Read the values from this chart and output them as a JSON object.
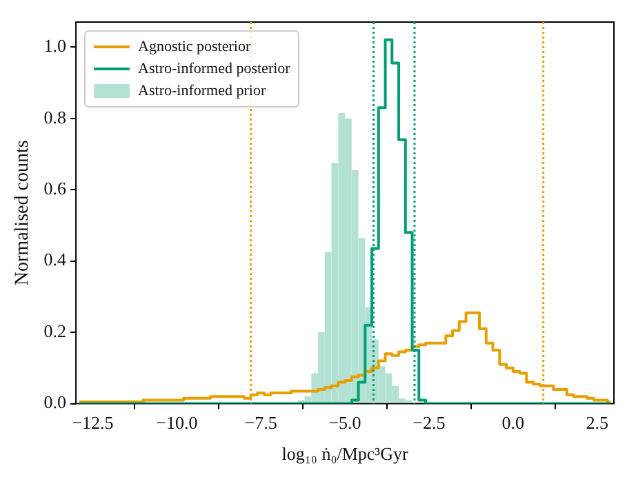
{
  "chart_data": {
    "type": "histogram",
    "xlabel": "log₁₀ ṅ₀/Mpc³Gyr",
    "ylabel": "Normalised counts",
    "bins": [
      -13,
      -12.8,
      -12.6,
      -12.4,
      -12.2,
      -12,
      -11.8,
      -11.6,
      -11.4,
      -11.2,
      -11,
      -10.8,
      -10.6,
      -10.4,
      -10.2,
      -10,
      -9.8,
      -9.6,
      -9.4,
      -9.2,
      -9,
      -8.8,
      -8.6,
      -8.4,
      -8.2,
      -8,
      -7.8,
      -7.6,
      -7.4,
      -7.2,
      -7,
      -6.8,
      -6.6,
      -6.4,
      -6.2,
      -6,
      -5.8,
      -5.6,
      -5.4,
      -5.2,
      -5,
      -4.8,
      -4.6,
      -4.4,
      -4.2,
      -4,
      -3.8,
      -3.6,
      -3.4,
      -3.2,
      -3,
      -2.8,
      -2.6,
      -2.4,
      -2.2,
      -2,
      -1.8,
      -1.6,
      -1.4,
      -1.2,
      -1,
      -0.8,
      -0.6,
      -0.4,
      -0.2,
      0,
      0.2,
      0.4,
      0.6,
      0.8,
      1,
      1.2,
      1.4,
      1.6,
      1.8,
      2,
      2.2,
      2.4,
      2.6,
      2.8,
      3
    ],
    "series": [
      {
        "name": "Agnostic posterior",
        "type": "step",
        "color": "#e69f00",
        "x": [
          -12.9,
          -12.7,
          -12.5,
          -12.3,
          -12.1,
          -11.9,
          -11.7,
          -11.5,
          -11.3,
          -11.1,
          -10.9,
          -10.7,
          -10.5,
          -10.3,
          -10.1,
          -9.9,
          -9.7,
          -9.5,
          -9.3,
          -9.1,
          -8.9,
          -8.7,
          -8.5,
          -8.3,
          -8.1,
          -7.9,
          -7.7,
          -7.5,
          -7.3,
          -7.1,
          -6.9,
          -6.7,
          -6.5,
          -6.3,
          -6.1,
          -5.9,
          -5.7,
          -5.5,
          -5.3,
          -5.1,
          -4.9,
          -4.7,
          -4.5,
          -4.3,
          -4.1,
          -3.9,
          -3.7,
          -3.5,
          -3.3,
          -3.1,
          -2.9,
          -2.7,
          -2.5,
          -2.3,
          -2.1,
          -1.9,
          -1.7,
          -1.5,
          -1.3,
          -1.1,
          -0.9,
          -0.7,
          -0.5,
          -0.3,
          -0.1,
          0.1,
          0.3,
          0.5,
          0.7,
          0.9,
          1.1,
          1.3,
          1.5,
          1.7,
          1.9,
          2.1,
          2.3,
          2.5,
          2.7,
          2.9
        ],
        "values": [
          0.005,
          0.005,
          0.005,
          0.005,
          0.005,
          0.005,
          0.005,
          0.005,
          0.005,
          0.005,
          0.01,
          0.01,
          0.01,
          0.01,
          0.01,
          0.01,
          0.015,
          0.015,
          0.015,
          0.015,
          0.02,
          0.02,
          0.02,
          0.02,
          0.02,
          0.015,
          0.025,
          0.03,
          0.025,
          0.03,
          0.03,
          0.03,
          0.035,
          0.035,
          0.035,
          0.035,
          0.04,
          0.045,
          0.05,
          0.06,
          0.065,
          0.075,
          0.08,
          0.09,
          0.1,
          0.12,
          0.14,
          0.135,
          0.145,
          0.15,
          0.16,
          0.165,
          0.17,
          0.17,
          0.17,
          0.19,
          0.205,
          0.23,
          0.255,
          0.255,
          0.21,
          0.17,
          0.15,
          0.11,
          0.1,
          0.09,
          0.085,
          0.06,
          0.055,
          0.05,
          0.05,
          0.04,
          0.04,
          0.025,
          0.02,
          0.02,
          0.015,
          0.01,
          0.01,
          0.005
        ]
      },
      {
        "name": "Astro-informed posterior",
        "type": "step",
        "color": "#009e73",
        "x": [
          -12.9,
          -12.7,
          -12.5,
          -12.3,
          -12.1,
          -11.9,
          -11.7,
          -11.5,
          -11.3,
          -11.1,
          -10.9,
          -10.7,
          -10.5,
          -10.3,
          -10.1,
          -9.9,
          -9.7,
          -9.5,
          -9.3,
          -9.1,
          -8.9,
          -8.7,
          -8.5,
          -8.3,
          -8.1,
          -7.9,
          -7.7,
          -7.5,
          -7.3,
          -7.1,
          -6.9,
          -6.7,
          -6.5,
          -6.3,
          -6.1,
          -5.9,
          -5.7,
          -5.5,
          -5.3,
          -5.1,
          -4.9,
          -4.7,
          -4.5,
          -4.3,
          -4.1,
          -3.9,
          -3.7,
          -3.5,
          -3.3,
          -3.1,
          -2.9,
          -2.7,
          -2.5,
          -2.3,
          -2.1,
          -1.9,
          -1.7,
          -1.5,
          -1.3,
          -1.1,
          -0.9,
          -0.7,
          -0.5,
          -0.3,
          -0.1,
          0.1,
          0.3,
          0.5,
          0.7,
          0.9,
          1.1,
          1.3,
          1.5,
          1.7,
          1.9,
          2.1,
          2.3,
          2.5,
          2.7,
          2.9
        ],
        "values": [
          0,
          0,
          0,
          0,
          0,
          0,
          0,
          0,
          0,
          0,
          0,
          0,
          0,
          0,
          0,
          0,
          0,
          0,
          0,
          0,
          0,
          0,
          0,
          0,
          0,
          0,
          0,
          0,
          0,
          0,
          0,
          0,
          0,
          0,
          0,
          0,
          0,
          0,
          0,
          0,
          0,
          0.01,
          0.06,
          0.22,
          0.435,
          0.83,
          1.02,
          0.955,
          0.74,
          0.48,
          0.15,
          0.01,
          0,
          0,
          0,
          0,
          0,
          0,
          0,
          0,
          0,
          0,
          0,
          0,
          0,
          0,
          0,
          0,
          0,
          0,
          0,
          0,
          0,
          0,
          0,
          0,
          0,
          0,
          0,
          0
        ]
      },
      {
        "name": "Astro-informed prior",
        "color": "#b3e2d5",
        "values": [
          0,
          0,
          0,
          0,
          0,
          0,
          0,
          0,
          0,
          0,
          0,
          0,
          0,
          0,
          0,
          0,
          0,
          0,
          0,
          0,
          0,
          0,
          0,
          0,
          0,
          0,
          0,
          0,
          0,
          0,
          0,
          0,
          0,
          0.01,
          0.02,
          0.085,
          0.2,
          0.425,
          0.675,
          0.815,
          0.8,
          0.655,
          0.465,
          0.27,
          0.18,
          0.105,
          0.085,
          0.05,
          0.015,
          0.01,
          null,
          null,
          0,
          0,
          0,
          0,
          0,
          0,
          0,
          0,
          0,
          0,
          0,
          0,
          0,
          0,
          0,
          0,
          0,
          0,
          0,
          0,
          0,
          0,
          0,
          0,
          0,
          0,
          0,
          0
        ]
      }
    ],
    "xlim": [
      -13,
      3
    ],
    "xticks": [
      {
        "value": -12.5,
        "label": "−12.5"
      },
      {
        "value": -10,
        "label": "−10.0"
      },
      {
        "value": -7.5,
        "label": "−7.5"
      },
      {
        "value": -5,
        "label": "−5.0"
      },
      {
        "value": -2.5,
        "label": "−2.5"
      },
      {
        "value": 0,
        "label": "0.0"
      },
      {
        "value": 2.5,
        "label": "2.5"
      }
    ],
    "ylim": [
      0,
      1.07
    ],
    "yticks": [
      {
        "value": 0,
        "label": "0.0"
      },
      {
        "value": 0.2,
        "label": "0.2"
      },
      {
        "value": 0.4,
        "label": "0.4"
      },
      {
        "value": 0.6,
        "label": "0.6"
      },
      {
        "value": 0.8,
        "label": "0.8"
      },
      {
        "value": 1,
        "label": "1.0"
      }
    ],
    "ref_lines": [
      {
        "axis": "x",
        "value": -7.8,
        "color": "#e69f00",
        "line_style": "dotted"
      },
      {
        "axis": "x",
        "value": 0.9,
        "color": "#e69f00",
        "line_style": "dotted"
      },
      {
        "axis": "x",
        "value": -4.15,
        "color": "#009e73",
        "line_style": "dotted"
      },
      {
        "axis": "x",
        "value": -2.93,
        "color": "#009e73",
        "line_style": "dotted"
      }
    ],
    "legend": "top left",
    "grid": false
  }
}
